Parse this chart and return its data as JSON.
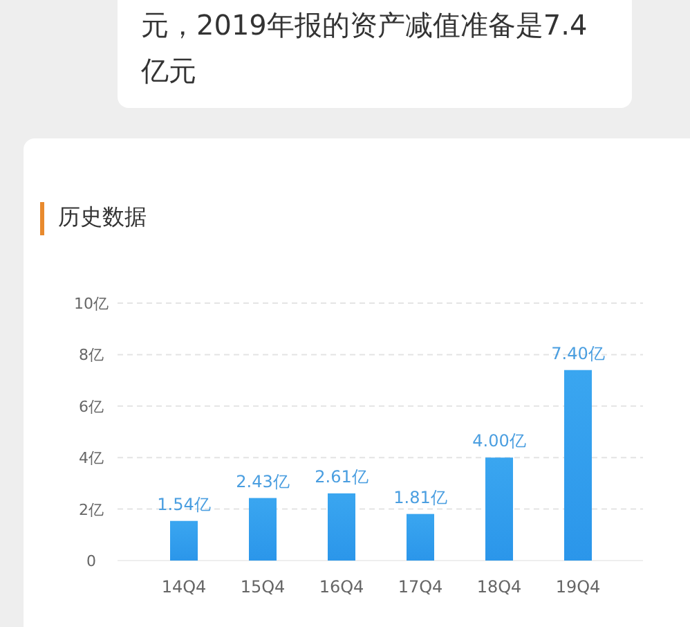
{
  "chart_data": {
    "type": "bar",
    "title": "历史数据",
    "annotations": [
      "元，2019年报的资产减值准备是7.4亿元"
    ],
    "categories": [
      "14Q4",
      "15Q4",
      "16Q4",
      "17Q4",
      "18Q4",
      "19Q4"
    ],
    "values": [
      1.54,
      2.43,
      2.61,
      1.81,
      4.0,
      7.4
    ],
    "value_labels": [
      "1.54亿",
      "2.43亿",
      "2.61亿",
      "1.81亿",
      "4.00亿",
      "7.40亿"
    ],
    "color": "#2b96ea",
    "ylim": [
      0,
      10
    ],
    "yticks": [
      0,
      {
        "value": 2,
        "label": "2亿"
      },
      {
        "value": 4,
        "label": "4亿"
      },
      {
        "value": 6,
        "label": "6亿"
      },
      {
        "value": 8,
        "label": "8亿"
      },
      {
        "value": 10,
        "label": "10亿"
      }
    ],
    "grid": "y"
  }
}
